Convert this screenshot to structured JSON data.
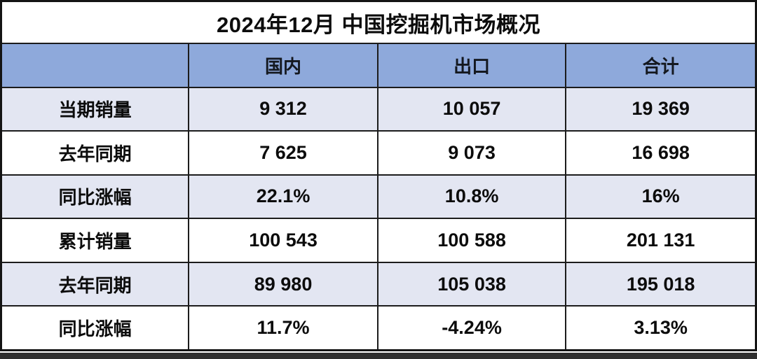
{
  "table": {
    "title": "2024年12月 中国挖掘机市场概况",
    "columns": [
      "",
      "国内",
      "出口",
      "合计"
    ],
    "rows": [
      {
        "label": "当期销量",
        "values": [
          "9 312",
          "10 057",
          "19 369"
        ]
      },
      {
        "label": "去年同期",
        "values": [
          "7 625",
          "9 073",
          "16 698"
        ]
      },
      {
        "label": "同比涨幅",
        "values": [
          "22.1%",
          "10.8%",
          "16%"
        ]
      },
      {
        "label": "累计销量",
        "values": [
          "100 543",
          "100 588",
          "201 131"
        ]
      },
      {
        "label": "去年同期",
        "values": [
          "89 980",
          "105 038",
          "195 018"
        ]
      },
      {
        "label": "同比涨幅",
        "values": [
          "11.7%",
          "-4.24%",
          "3.13%"
        ]
      }
    ],
    "colors": {
      "header_bg": "#8EA9DB",
      "row_alt_bg": "#E3E6F2",
      "row_bg": "#FFFFFF",
      "grid_border": "#1C1C1C",
      "outer_border": "#141414",
      "text": "#0C0C0C",
      "bottom_bar": "#2E2E2E"
    }
  },
  "chart_data": {
    "type": "table",
    "title": "2024年12月 中国挖掘机市场概况",
    "columns": [
      "",
      "国内",
      "出口",
      "合计"
    ],
    "rows": [
      [
        "当期销量",
        "9 312",
        "10 057",
        "19 369"
      ],
      [
        "去年同期",
        "7 625",
        "9 073",
        "16 698"
      ],
      [
        "同比涨幅",
        "22.1%",
        "10.8%",
        "16%"
      ],
      [
        "累计销量",
        "100 543",
        "100 588",
        "201 131"
      ],
      [
        "去年同期",
        "89 980",
        "105 038",
        "195 018"
      ],
      [
        "同比涨幅",
        "11.7%",
        "-4.24%",
        "3.13%"
      ]
    ]
  }
}
